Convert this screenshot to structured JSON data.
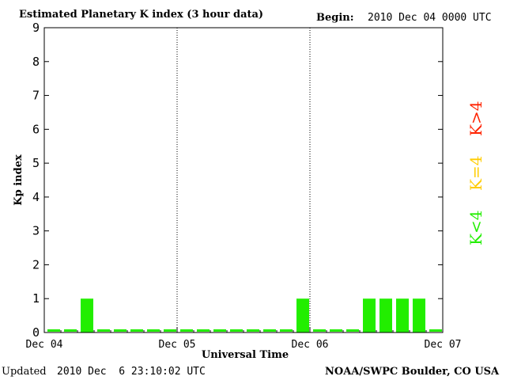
{
  "header": {
    "title": "Estimated Planetary K index (3 hour data)",
    "begin_label": "Begin:",
    "begin_value": "2010 Dec 04 0000 UTC"
  },
  "footer": {
    "updated_label": "Updated",
    "updated_value": "2010 Dec  6 23:10:02 UTC",
    "source": "NOAA/SWPC Boulder, CO USA"
  },
  "legend": [
    {
      "label": "K>4",
      "color": "#ff2200"
    },
    {
      "label": "K=4",
      "color": "#ffcc00"
    },
    {
      "label": "K<4",
      "color": "#22ee00"
    }
  ],
  "chart_data": {
    "type": "bar",
    "title": "Estimated Planetary K index (3 hour data)",
    "xlabel": "Universal Time",
    "ylabel": "Kp index",
    "ylim": [
      0,
      9
    ],
    "yticks": [
      "0",
      "1",
      "2",
      "3",
      "4",
      "5",
      "6",
      "7",
      "8",
      "9"
    ],
    "xticks": [
      "Dec 04",
      "Dec 05",
      "Dec 06",
      "Dec 07"
    ],
    "interval_hours": 3,
    "bar_color": "#22ee00",
    "values": [
      0,
      0,
      1,
      0,
      0,
      0,
      0,
      0,
      0,
      0,
      0,
      0,
      0,
      0,
      0,
      1,
      0,
      0,
      0,
      1,
      1,
      1,
      1,
      0
    ],
    "day_separators": "dotted"
  }
}
